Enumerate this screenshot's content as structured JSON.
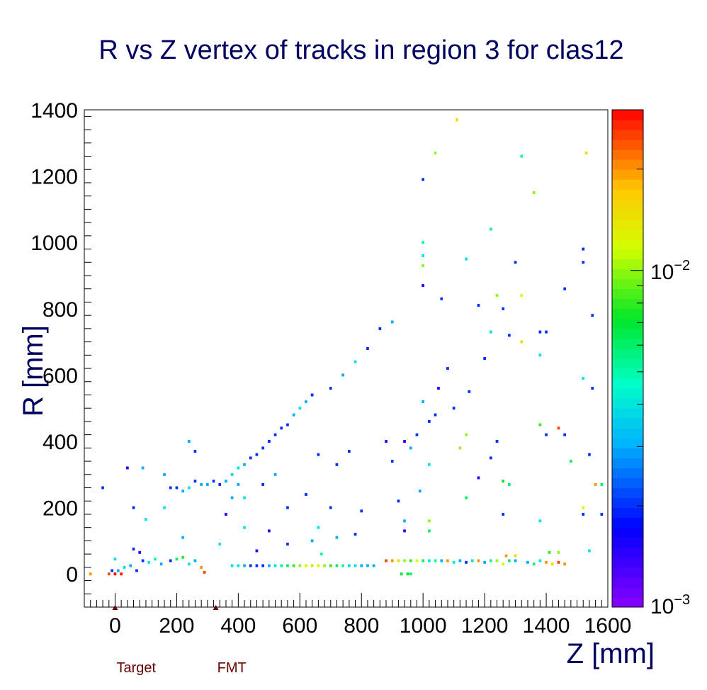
{
  "chart_data": {
    "type": "heatmap",
    "title": "R vs Z vertex of tracks in region 3 for clas12",
    "xlabel": "Z [mm]",
    "ylabel": "R [mm]",
    "xlim": [
      -100,
      1600
    ],
    "ylim": [
      -100,
      1400
    ],
    "x_ticks": [
      "0",
      "200",
      "400",
      "600",
      "800",
      "1000",
      "1200",
      "1400",
      "1600"
    ],
    "y_ticks": [
      "0",
      "200",
      "400",
      "600",
      "800",
      "1000",
      "1200",
      "1400"
    ],
    "z_scale": "log",
    "z_range": [
      0.001,
      0.03
    ],
    "z_tick_labels": [
      {
        "base": "10",
        "exp": "−2",
        "value": 0.01
      },
      {
        "base": "10",
        "exp": "−3",
        "value": 0.001
      }
    ],
    "markers": [
      {
        "label": "Target",
        "z": 0,
        "color": "#660000"
      },
      {
        "label": "FMT",
        "z": 327,
        "color": "#660000"
      }
    ],
    "bins": [
      {
        "z": -80,
        "r": 0,
        "v": 0.02
      },
      {
        "z": -20,
        "r": 0,
        "v": 0.025
      },
      {
        "z": 0,
        "r": 0,
        "v": 0.03
      },
      {
        "z": 20,
        "r": 0,
        "v": 0.028
      },
      {
        "z": -10,
        "r": 10,
        "v": 0.002
      },
      {
        "z": 10,
        "r": 10,
        "v": 0.003
      },
      {
        "z": 30,
        "r": 20,
        "v": 0.004
      },
      {
        "z": 50,
        "r": 25,
        "v": 0.003
      },
      {
        "z": 70,
        "r": 10,
        "v": 0.002
      },
      {
        "z": 90,
        "r": 40,
        "v": 0.002
      },
      {
        "z": 110,
        "r": 35,
        "v": 0.004
      },
      {
        "z": 130,
        "r": 45,
        "v": 0.005
      },
      {
        "z": 150,
        "r": 30,
        "v": 0.003
      },
      {
        "z": 180,
        "r": 40,
        "v": 0.002
      },
      {
        "z": 200,
        "r": 45,
        "v": 0.006
      },
      {
        "z": 220,
        "r": 50,
        "v": 0.008
      },
      {
        "z": 240,
        "r": 30,
        "v": 0.004
      },
      {
        "z": 260,
        "r": 40,
        "v": 0.003
      },
      {
        "z": 280,
        "r": 20,
        "v": 0.02
      },
      {
        "z": 290,
        "r": 5,
        "v": 0.025
      },
      {
        "z": 0,
        "r": 45,
        "v": 0.004
      },
      {
        "z": 60,
        "r": 75,
        "v": 0.002
      },
      {
        "z": 80,
        "r": 65,
        "v": 0.0015
      },
      {
        "z": 380,
        "r": 25,
        "v": 0.004
      },
      {
        "z": 400,
        "r": 25,
        "v": 0.004
      },
      {
        "z": 420,
        "r": 25,
        "v": 0.003
      },
      {
        "z": 440,
        "r": 25,
        "v": 0.002
      },
      {
        "z": 460,
        "r": 25,
        "v": 0.002
      },
      {
        "z": 480,
        "r": 25,
        "v": 0.002
      },
      {
        "z": 500,
        "r": 25,
        "v": 0.003
      },
      {
        "z": 520,
        "r": 25,
        "v": 0.004
      },
      {
        "z": 540,
        "r": 25,
        "v": 0.005
      },
      {
        "z": 560,
        "r": 25,
        "v": 0.006
      },
      {
        "z": 580,
        "r": 25,
        "v": 0.008
      },
      {
        "z": 600,
        "r": 25,
        "v": 0.01
      },
      {
        "z": 620,
        "r": 25,
        "v": 0.012
      },
      {
        "z": 640,
        "r": 25,
        "v": 0.015
      },
      {
        "z": 660,
        "r": 25,
        "v": 0.012
      },
      {
        "z": 680,
        "r": 25,
        "v": 0.01
      },
      {
        "z": 700,
        "r": 25,
        "v": 0.008
      },
      {
        "z": 720,
        "r": 25,
        "v": 0.006
      },
      {
        "z": 740,
        "r": 25,
        "v": 0.005
      },
      {
        "z": 760,
        "r": 25,
        "v": 0.004
      },
      {
        "z": 780,
        "r": 25,
        "v": 0.004
      },
      {
        "z": 800,
        "r": 25,
        "v": 0.003
      },
      {
        "z": 820,
        "r": 25,
        "v": 0.003
      },
      {
        "z": 840,
        "r": 25,
        "v": 0.003
      },
      {
        "z": 880,
        "r": 40,
        "v": 0.025
      },
      {
        "z": 900,
        "r": 40,
        "v": 0.02
      },
      {
        "z": 920,
        "r": 40,
        "v": 0.015
      },
      {
        "z": 940,
        "r": 40,
        "v": 0.01
      },
      {
        "z": 960,
        "r": 40,
        "v": 0.008
      },
      {
        "z": 980,
        "r": 40,
        "v": 0.012
      },
      {
        "z": 1000,
        "r": 40,
        "v": 0.006
      },
      {
        "z": 1020,
        "r": 40,
        "v": 0.004
      },
      {
        "z": 1040,
        "r": 40,
        "v": 0.005
      },
      {
        "z": 1060,
        "r": 40,
        "v": 0.003
      },
      {
        "z": 1080,
        "r": 40,
        "v": 0.02
      },
      {
        "z": 1100,
        "r": 35,
        "v": 0.004
      },
      {
        "z": 1120,
        "r": 40,
        "v": 0.003
      },
      {
        "z": 1140,
        "r": 35,
        "v": 0.002
      },
      {
        "z": 1160,
        "r": 40,
        "v": 0.004
      },
      {
        "z": 1180,
        "r": 40,
        "v": 0.02
      },
      {
        "z": 1200,
        "r": 35,
        "v": 0.003
      },
      {
        "z": 1220,
        "r": 40,
        "v": 0.005
      },
      {
        "z": 1240,
        "r": 40,
        "v": 0.01
      },
      {
        "z": 1260,
        "r": 30,
        "v": 0.012
      },
      {
        "z": 1280,
        "r": 40,
        "v": 0.006
      },
      {
        "z": 1300,
        "r": 40,
        "v": 0.003
      },
      {
        "z": 1340,
        "r": 35,
        "v": 0.003
      },
      {
        "z": 1360,
        "r": 30,
        "v": 0.006
      },
      {
        "z": 1380,
        "r": 40,
        "v": 0.004
      },
      {
        "z": 1400,
        "r": 35,
        "v": 0.02
      },
      {
        "z": 1420,
        "r": 30,
        "v": 0.015
      },
      {
        "z": 1440,
        "r": 35,
        "v": 0.025
      },
      {
        "z": 1460,
        "r": 30,
        "v": 0.02
      },
      {
        "z": 1410,
        "r": 65,
        "v": 0.008
      },
      {
        "z": 1440,
        "r": 65,
        "v": 0.01
      },
      {
        "z": 950,
        "r": 0,
        "v": 0.007
      },
      {
        "z": 960,
        "r": 0,
        "v": 0.006
      },
      {
        "z": 1270,
        "r": 55,
        "v": 0.02
      },
      {
        "z": 1300,
        "r": 55,
        "v": 0.015
      },
      {
        "z": 100,
        "r": 165,
        "v": 0.004
      },
      {
        "z": 60,
        "r": 200,
        "v": 0.002
      },
      {
        "z": -40,
        "r": 260,
        "v": 0.002
      },
      {
        "z": 40,
        "r": 320,
        "v": 0.0015
      },
      {
        "z": 90,
        "r": 320,
        "v": 0.003
      },
      {
        "z": 160,
        "r": 300,
        "v": 0.003
      },
      {
        "z": 180,
        "r": 260,
        "v": 0.002
      },
      {
        "z": 200,
        "r": 260,
        "v": 0.002
      },
      {
        "z": 220,
        "r": 250,
        "v": 0.003
      },
      {
        "z": 240,
        "r": 260,
        "v": 0.004
      },
      {
        "z": 260,
        "r": 280,
        "v": 0.002
      },
      {
        "z": 280,
        "r": 270,
        "v": 0.003
      },
      {
        "z": 300,
        "r": 270,
        "v": 0.003
      },
      {
        "z": 320,
        "r": 280,
        "v": 0.002
      },
      {
        "z": 340,
        "r": 270,
        "v": 0.002
      },
      {
        "z": 360,
        "r": 280,
        "v": 0.003
      },
      {
        "z": 380,
        "r": 300,
        "v": 0.004
      },
      {
        "z": 400,
        "r": 320,
        "v": 0.004
      },
      {
        "z": 420,
        "r": 330,
        "v": 0.003
      },
      {
        "z": 440,
        "r": 350,
        "v": 0.002
      },
      {
        "z": 460,
        "r": 360,
        "v": 0.002
      },
      {
        "z": 480,
        "r": 380,
        "v": 0.002
      },
      {
        "z": 500,
        "r": 400,
        "v": 0.002
      },
      {
        "z": 520,
        "r": 420,
        "v": 0.002
      },
      {
        "z": 540,
        "r": 440,
        "v": 0.002
      },
      {
        "z": 560,
        "r": 450,
        "v": 0.002
      },
      {
        "z": 580,
        "r": 480,
        "v": 0.003
      },
      {
        "z": 600,
        "r": 500,
        "v": 0.004
      },
      {
        "z": 620,
        "r": 520,
        "v": 0.003
      },
      {
        "z": 640,
        "r": 540,
        "v": 0.002
      },
      {
        "z": 700,
        "r": 560,
        "v": 0.002
      },
      {
        "z": 740,
        "r": 600,
        "v": 0.003
      },
      {
        "z": 780,
        "r": 640,
        "v": 0.004
      },
      {
        "z": 820,
        "r": 680,
        "v": 0.002
      },
      {
        "z": 860,
        "r": 740,
        "v": 0.002
      },
      {
        "z": 900,
        "r": 760,
        "v": 0.003
      },
      {
        "z": 260,
        "r": 370,
        "v": 0.002
      },
      {
        "z": 240,
        "r": 400,
        "v": 0.003
      },
      {
        "z": 400,
        "r": 270,
        "v": 0.003
      },
      {
        "z": 420,
        "r": 230,
        "v": 0.004
      },
      {
        "z": 480,
        "r": 270,
        "v": 0.002
      },
      {
        "z": 520,
        "r": 300,
        "v": 0.003
      },
      {
        "z": 560,
        "r": 200,
        "v": 0.002
      },
      {
        "z": 620,
        "r": 240,
        "v": 0.002
      },
      {
        "z": 660,
        "r": 360,
        "v": 0.002
      },
      {
        "z": 720,
        "r": 330,
        "v": 0.002
      },
      {
        "z": 760,
        "r": 370,
        "v": 0.002
      },
      {
        "z": 660,
        "r": 140,
        "v": 0.004
      },
      {
        "z": 700,
        "r": 200,
        "v": 0.002
      },
      {
        "z": 720,
        "r": 110,
        "v": 0.003
      },
      {
        "z": 800,
        "r": 190,
        "v": 0.002
      },
      {
        "z": 900,
        "r": 340,
        "v": 0.002
      },
      {
        "z": 940,
        "r": 400,
        "v": 0.0015
      },
      {
        "z": 980,
        "r": 420,
        "v": 0.002
      },
      {
        "z": 1000,
        "r": 520,
        "v": 0.003
      },
      {
        "z": 1050,
        "r": 560,
        "v": 0.0015
      },
      {
        "z": 1080,
        "r": 620,
        "v": 0.002
      },
      {
        "z": 1150,
        "r": 550,
        "v": 0.002
      },
      {
        "z": 1200,
        "r": 650,
        "v": 0.002
      },
      {
        "z": 1220,
        "r": 730,
        "v": 0.004
      },
      {
        "z": 1180,
        "r": 810,
        "v": 0.002
      },
      {
        "z": 1260,
        "r": 800,
        "v": 0.002
      },
      {
        "z": 1280,
        "r": 720,
        "v": 0.002
      },
      {
        "z": 1380,
        "r": 730,
        "v": 0.002
      },
      {
        "z": 1400,
        "r": 730,
        "v": 0.002
      },
      {
        "z": 1460,
        "r": 860,
        "v": 0.002
      },
      {
        "z": 1520,
        "r": 980,
        "v": 0.002
      },
      {
        "z": 1520,
        "r": 940,
        "v": 0.002
      },
      {
        "z": 1300,
        "r": 940,
        "v": 0.002
      },
      {
        "z": 1140,
        "r": 950,
        "v": 0.004
      },
      {
        "z": 1000,
        "r": 960,
        "v": 0.004
      },
      {
        "z": 1000,
        "r": 1000,
        "v": 0.005
      },
      {
        "z": 1000,
        "r": 930,
        "v": 0.01
      },
      {
        "z": 1000,
        "r": 870,
        "v": 0.0015
      },
      {
        "z": 1060,
        "r": 830,
        "v": 0.002
      },
      {
        "z": 1240,
        "r": 840,
        "v": 0.01
      },
      {
        "z": 1320,
        "r": 840,
        "v": 0.012
      },
      {
        "z": 1000,
        "r": 1190,
        "v": 0.002
      },
      {
        "z": 1040,
        "r": 1270,
        "v": 0.01
      },
      {
        "z": 1110,
        "r": 1370,
        "v": 0.015
      },
      {
        "z": 1320,
        "r": 1260,
        "v": 0.005
      },
      {
        "z": 1360,
        "r": 1150,
        "v": 0.01
      },
      {
        "z": 1530,
        "r": 1270,
        "v": 0.015
      },
      {
        "z": 1220,
        "r": 1040,
        "v": 0.005
      },
      {
        "z": 1380,
        "r": 660,
        "v": 0.004
      },
      {
        "z": 1320,
        "r": 700,
        "v": 0.015
      },
      {
        "z": 1380,
        "r": 450,
        "v": 0.008
      },
      {
        "z": 1440,
        "r": 440,
        "v": 0.025
      },
      {
        "z": 1400,
        "r": 420,
        "v": 0.002
      },
      {
        "z": 1460,
        "r": 420,
        "v": 0.002
      },
      {
        "z": 1140,
        "r": 420,
        "v": 0.01
      },
      {
        "z": 1120,
        "r": 380,
        "v": 0.01
      },
      {
        "z": 1140,
        "r": 230,
        "v": 0.006
      },
      {
        "z": 1260,
        "r": 280,
        "v": 0.007
      },
      {
        "z": 1280,
        "r": 270,
        "v": 0.006
      },
      {
        "z": 1180,
        "r": 290,
        "v": 0.0015
      },
      {
        "z": 1260,
        "r": 180,
        "v": 0.002
      },
      {
        "z": 1380,
        "r": 160,
        "v": 0.004
      },
      {
        "z": 1480,
        "r": 340,
        "v": 0.006
      },
      {
        "z": 1520,
        "r": 590,
        "v": 0.004
      },
      {
        "z": 1550,
        "r": 560,
        "v": 0.002
      },
      {
        "z": 1550,
        "r": 780,
        "v": 0.002
      },
      {
        "z": 1540,
        "r": 360,
        "v": 0.002
      },
      {
        "z": 1520,
        "r": 200,
        "v": 0.012
      },
      {
        "z": 1520,
        "r": 180,
        "v": 0.002
      },
      {
        "z": 1560,
        "r": 270,
        "v": 0.02
      },
      {
        "z": 1580,
        "r": 270,
        "v": 0.006
      },
      {
        "z": 1580,
        "r": 180,
        "v": 0.002
      },
      {
        "z": 1540,
        "r": 70,
        "v": 0.004
      },
      {
        "z": 1020,
        "r": 160,
        "v": 0.01
      },
      {
        "z": 1020,
        "r": 130,
        "v": 0.006
      },
      {
        "z": 940,
        "r": 160,
        "v": 0.003
      },
      {
        "z": 940,
        "r": 130,
        "v": 0.0015
      },
      {
        "z": 920,
        "r": 220,
        "v": 0.002
      },
      {
        "z": 990,
        "r": 250,
        "v": 0.003
      },
      {
        "z": 1020,
        "r": 330,
        "v": 0.004
      },
      {
        "z": 1220,
        "r": 350,
        "v": 0.002
      },
      {
        "z": 1240,
        "r": 400,
        "v": 0.002
      },
      {
        "z": 1100,
        "r": 500,
        "v": 0.002
      },
      {
        "z": 1040,
        "r": 480,
        "v": 0.002
      },
      {
        "z": 1020,
        "r": 460,
        "v": 0.002
      },
      {
        "z": 960,
        "r": 380,
        "v": 0.003
      },
      {
        "z": 880,
        "r": 400,
        "v": 0.0015
      },
      {
        "z": 780,
        "r": 120,
        "v": 0.002
      },
      {
        "z": 640,
        "r": 100,
        "v": 0.003
      },
      {
        "z": 560,
        "r": 90,
        "v": 0.002
      },
      {
        "z": 500,
        "r": 130,
        "v": 0.0015
      },
      {
        "z": 420,
        "r": 140,
        "v": 0.004
      },
      {
        "z": 360,
        "r": 180,
        "v": 0.0015
      },
      {
        "z": 380,
        "r": 230,
        "v": 0.003
      },
      {
        "z": 340,
        "r": 90,
        "v": 0.004
      },
      {
        "z": 220,
        "r": 110,
        "v": 0.003
      },
      {
        "z": 160,
        "r": 200,
        "v": 0.004
      },
      {
        "z": 460,
        "r": 70,
        "v": 0.0015
      },
      {
        "z": 670,
        "r": 60,
        "v": 0.005
      },
      {
        "z": 930,
        "r": 0,
        "v": 0.007
      }
    ]
  }
}
